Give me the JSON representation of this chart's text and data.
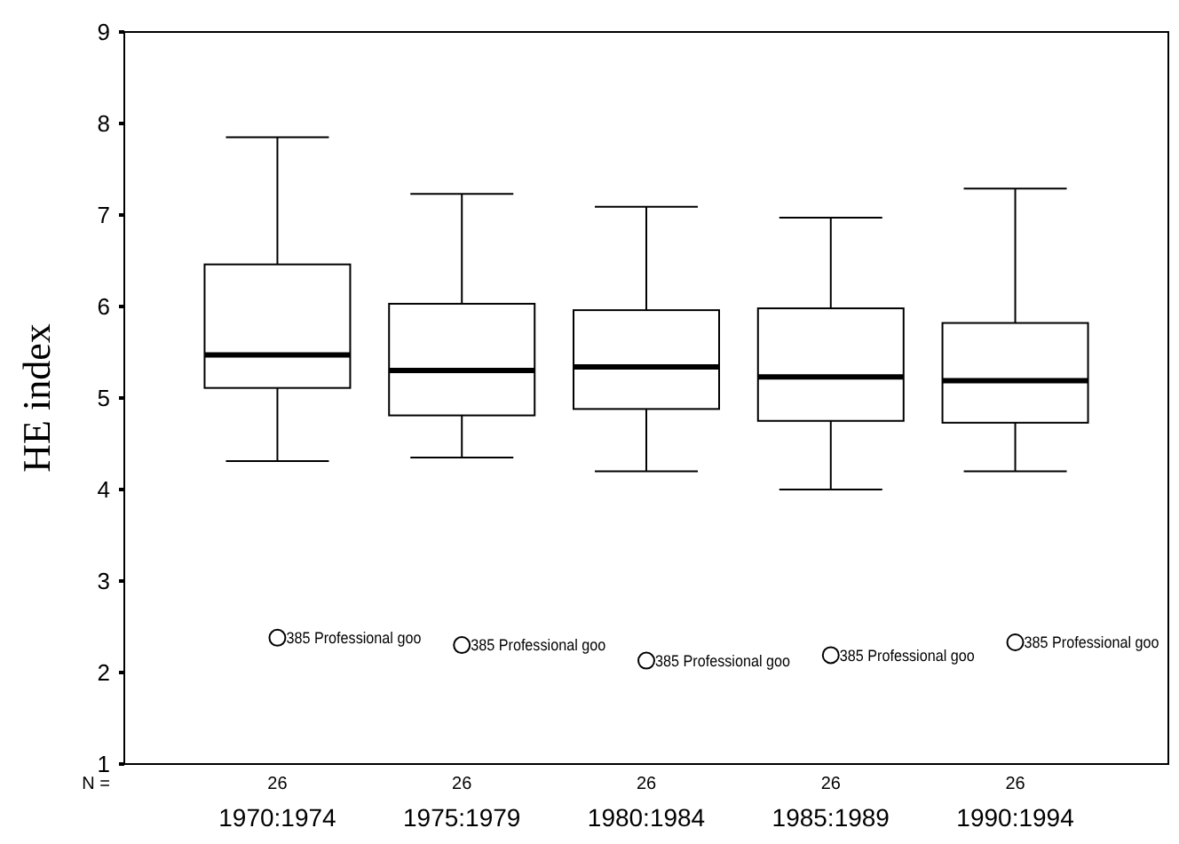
{
  "chart_data": {
    "type": "box",
    "ylabel": "HE index",
    "categories": [
      "1970:1974",
      "1975:1979",
      "1980:1984",
      "1985:1989",
      "1990:1994"
    ],
    "boxes": [
      {
        "low": 4.31,
        "q1": 5.11,
        "median": 5.47,
        "q3": 6.46,
        "high": 7.85,
        "outliers": [
          2.38
        ]
      },
      {
        "low": 4.35,
        "q1": 4.81,
        "median": 5.3,
        "q3": 6.03,
        "high": 7.23,
        "outliers": [
          2.3
        ]
      },
      {
        "low": 4.2,
        "q1": 4.88,
        "median": 5.34,
        "q3": 5.96,
        "high": 7.09,
        "outliers": [
          2.13
        ]
      },
      {
        "low": 4.0,
        "q1": 4.75,
        "median": 5.23,
        "q3": 5.98,
        "high": 6.97,
        "outliers": [
          2.19
        ]
      },
      {
        "low": 4.2,
        "q1": 4.73,
        "median": 5.19,
        "q3": 5.82,
        "high": 7.29,
        "outliers": [
          2.33
        ]
      }
    ],
    "ylim": [
      1,
      9
    ],
    "yticks": [
      1,
      2,
      3,
      4,
      5,
      6,
      7,
      8,
      9
    ],
    "grid": false,
    "annotations": [
      "385 Professional goo",
      "385 Professional goo",
      "385 Professional goo",
      "385 Professional goo",
      "385 Professional goo",
      "N =",
      "26",
      "26",
      "26",
      "26",
      "26"
    ]
  }
}
